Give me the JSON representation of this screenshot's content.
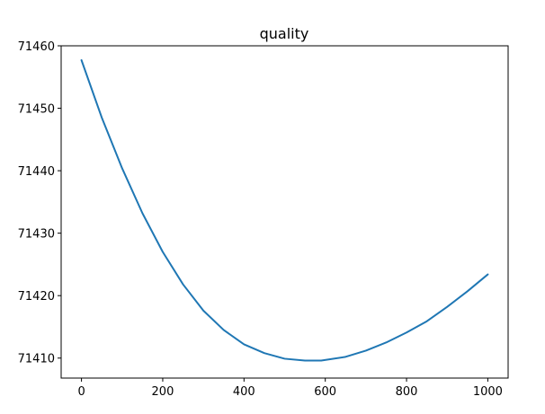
{
  "chart_data": {
    "type": "line",
    "title": "quality",
    "xlabel": "",
    "ylabel": "",
    "xlim": [
      -50,
      1050
    ],
    "ylim": [
      71406.8,
      71460
    ],
    "xticks": [
      0,
      200,
      400,
      600,
      800,
      1000
    ],
    "yticks": [
      71410,
      71420,
      71430,
      71440,
      71450,
      71460
    ],
    "grid": false,
    "series": [
      {
        "color": "#1f77b4",
        "x": [
          0,
          50,
          100,
          150,
          200,
          250,
          300,
          350,
          400,
          450,
          500,
          550,
          590,
          650,
          700,
          750,
          800,
          850,
          900,
          950,
          1000
        ],
        "values": [
          71457.7,
          71448.5,
          71440.4,
          71433.2,
          71427.0,
          71421.8,
          71417.6,
          71414.5,
          71412.2,
          71410.8,
          71409.9,
          71409.6,
          71409.6,
          71410.2,
          71411.2,
          71412.5,
          71414.1,
          71415.9,
          71418.2,
          71420.7,
          71423.4
        ]
      }
    ]
  }
}
